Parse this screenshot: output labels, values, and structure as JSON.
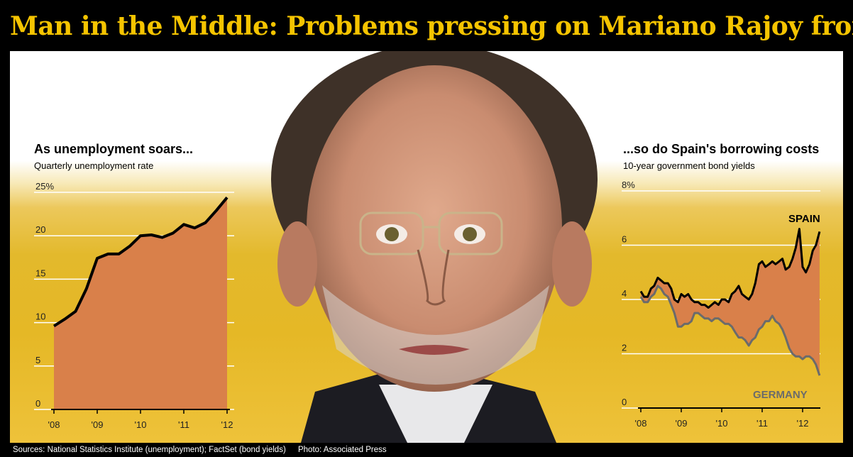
{
  "headline": "Man in the Middle: Problems pressing on Mariano Rajoy from all sides",
  "footer": {
    "sources": "Sources: National Statistics Institute (unemployment); FactSet (bond yields)",
    "photo": "Photo: Associated Press"
  },
  "photo": {
    "subject": "portrait"
  },
  "colors": {
    "headline": "#f5c400",
    "fill": "#d9804a",
    "line": "#000000",
    "germany": "#6b6b6b",
    "gold": "#e3b92c"
  },
  "chart_data": [
    {
      "type": "area",
      "title": "As unemployment soars...",
      "subtitle": "Quarterly unemployment rate",
      "ylim": [
        0,
        25
      ],
      "xlim": [
        2008.0,
        2012.25
      ],
      "yticks": [
        0,
        5,
        10,
        15,
        20,
        25
      ],
      "ytick_labels": [
        "0",
        "5",
        "10",
        "15",
        "20",
        "25%"
      ],
      "xticks": [
        2008,
        2009,
        2010,
        2011,
        2012
      ],
      "xtick_labels": [
        "'08",
        "'09",
        "'10",
        "'11",
        "'12"
      ],
      "grid": true,
      "series": [
        {
          "x": [
            2008.0,
            2008.25,
            2008.5,
            2008.75,
            2009.0,
            2009.25,
            2009.5,
            2009.75,
            2010.0,
            2010.25,
            2010.5,
            2010.75,
            2011.0,
            2011.25,
            2011.5,
            2011.75,
            2012.0
          ],
          "values": [
            9.6,
            10.4,
            11.3,
            13.9,
            17.4,
            17.9,
            17.9,
            18.8,
            20.0,
            20.1,
            19.8,
            20.3,
            21.3,
            20.9,
            21.5,
            22.9,
            24.4
          ]
        }
      ]
    },
    {
      "type": "line",
      "title": "...so do Spain's borrowing costs",
      "subtitle": "10-year government bond yields",
      "ylim": [
        0,
        8
      ],
      "xlim": [
        2008.0,
        2012.45
      ],
      "yticks": [
        0,
        2,
        4,
        6,
        8
      ],
      "ytick_labels": [
        "0",
        "2",
        "4",
        "6",
        "8%"
      ],
      "xticks": [
        2008,
        2009,
        2010,
        2011,
        2012
      ],
      "xtick_labels": [
        "'08",
        "'09",
        "'10",
        "'11",
        "'12"
      ],
      "grid": true,
      "series": [
        {
          "name": "SPAIN",
          "x": [
            2008.0,
            2008.08,
            2008.17,
            2008.25,
            2008.33,
            2008.42,
            2008.5,
            2008.58,
            2008.67,
            2008.75,
            2008.83,
            2008.92,
            2009.0,
            2009.08,
            2009.17,
            2009.25,
            2009.33,
            2009.42,
            2009.5,
            2009.58,
            2009.67,
            2009.75,
            2009.83,
            2009.92,
            2010.0,
            2010.08,
            2010.17,
            2010.25,
            2010.33,
            2010.42,
            2010.5,
            2010.58,
            2010.67,
            2010.75,
            2010.83,
            2010.92,
            2011.0,
            2011.08,
            2011.17,
            2011.25,
            2011.33,
            2011.42,
            2011.5,
            2011.58,
            2011.67,
            2011.75,
            2011.83,
            2011.92,
            2012.0,
            2012.08,
            2012.17,
            2012.25,
            2012.33,
            2012.42
          ],
          "values": [
            4.3,
            4.1,
            4.1,
            4.4,
            4.5,
            4.8,
            4.7,
            4.6,
            4.6,
            4.4,
            4.0,
            3.9,
            4.2,
            4.1,
            4.2,
            4.0,
            3.9,
            3.9,
            3.8,
            3.8,
            3.7,
            3.8,
            3.9,
            3.8,
            4.0,
            4.0,
            3.9,
            4.2,
            4.3,
            4.5,
            4.2,
            4.1,
            4.0,
            4.2,
            4.6,
            5.3,
            5.4,
            5.2,
            5.3,
            5.4,
            5.3,
            5.4,
            5.5,
            5.1,
            5.2,
            5.5,
            5.9,
            6.6,
            5.2,
            5.0,
            5.3,
            5.8,
            6.0,
            6.5
          ]
        },
        {
          "name": "GERMANY",
          "x": [
            2008.0,
            2008.08,
            2008.17,
            2008.25,
            2008.33,
            2008.42,
            2008.5,
            2008.58,
            2008.67,
            2008.75,
            2008.83,
            2008.92,
            2009.0,
            2009.08,
            2009.17,
            2009.25,
            2009.33,
            2009.42,
            2009.5,
            2009.58,
            2009.67,
            2009.75,
            2009.83,
            2009.92,
            2010.0,
            2010.08,
            2010.17,
            2010.25,
            2010.33,
            2010.42,
            2010.5,
            2010.58,
            2010.67,
            2010.75,
            2010.83,
            2010.92,
            2011.0,
            2011.08,
            2011.17,
            2011.25,
            2011.33,
            2011.42,
            2011.5,
            2011.58,
            2011.67,
            2011.75,
            2011.83,
            2011.92,
            2012.0,
            2012.08,
            2012.17,
            2012.25,
            2012.33,
            2012.42
          ],
          "values": [
            4.1,
            3.9,
            3.9,
            4.1,
            4.2,
            4.5,
            4.4,
            4.2,
            4.1,
            3.8,
            3.5,
            3.0,
            3.0,
            3.1,
            3.1,
            3.2,
            3.5,
            3.5,
            3.4,
            3.3,
            3.3,
            3.2,
            3.3,
            3.3,
            3.2,
            3.1,
            3.1,
            3.0,
            2.8,
            2.6,
            2.6,
            2.5,
            2.3,
            2.5,
            2.6,
            2.9,
            3.0,
            3.2,
            3.2,
            3.4,
            3.2,
            3.1,
            2.9,
            2.6,
            2.2,
            2.0,
            1.9,
            1.9,
            1.8,
            1.9,
            1.9,
            1.8,
            1.6,
            1.2
          ]
        }
      ]
    }
  ]
}
